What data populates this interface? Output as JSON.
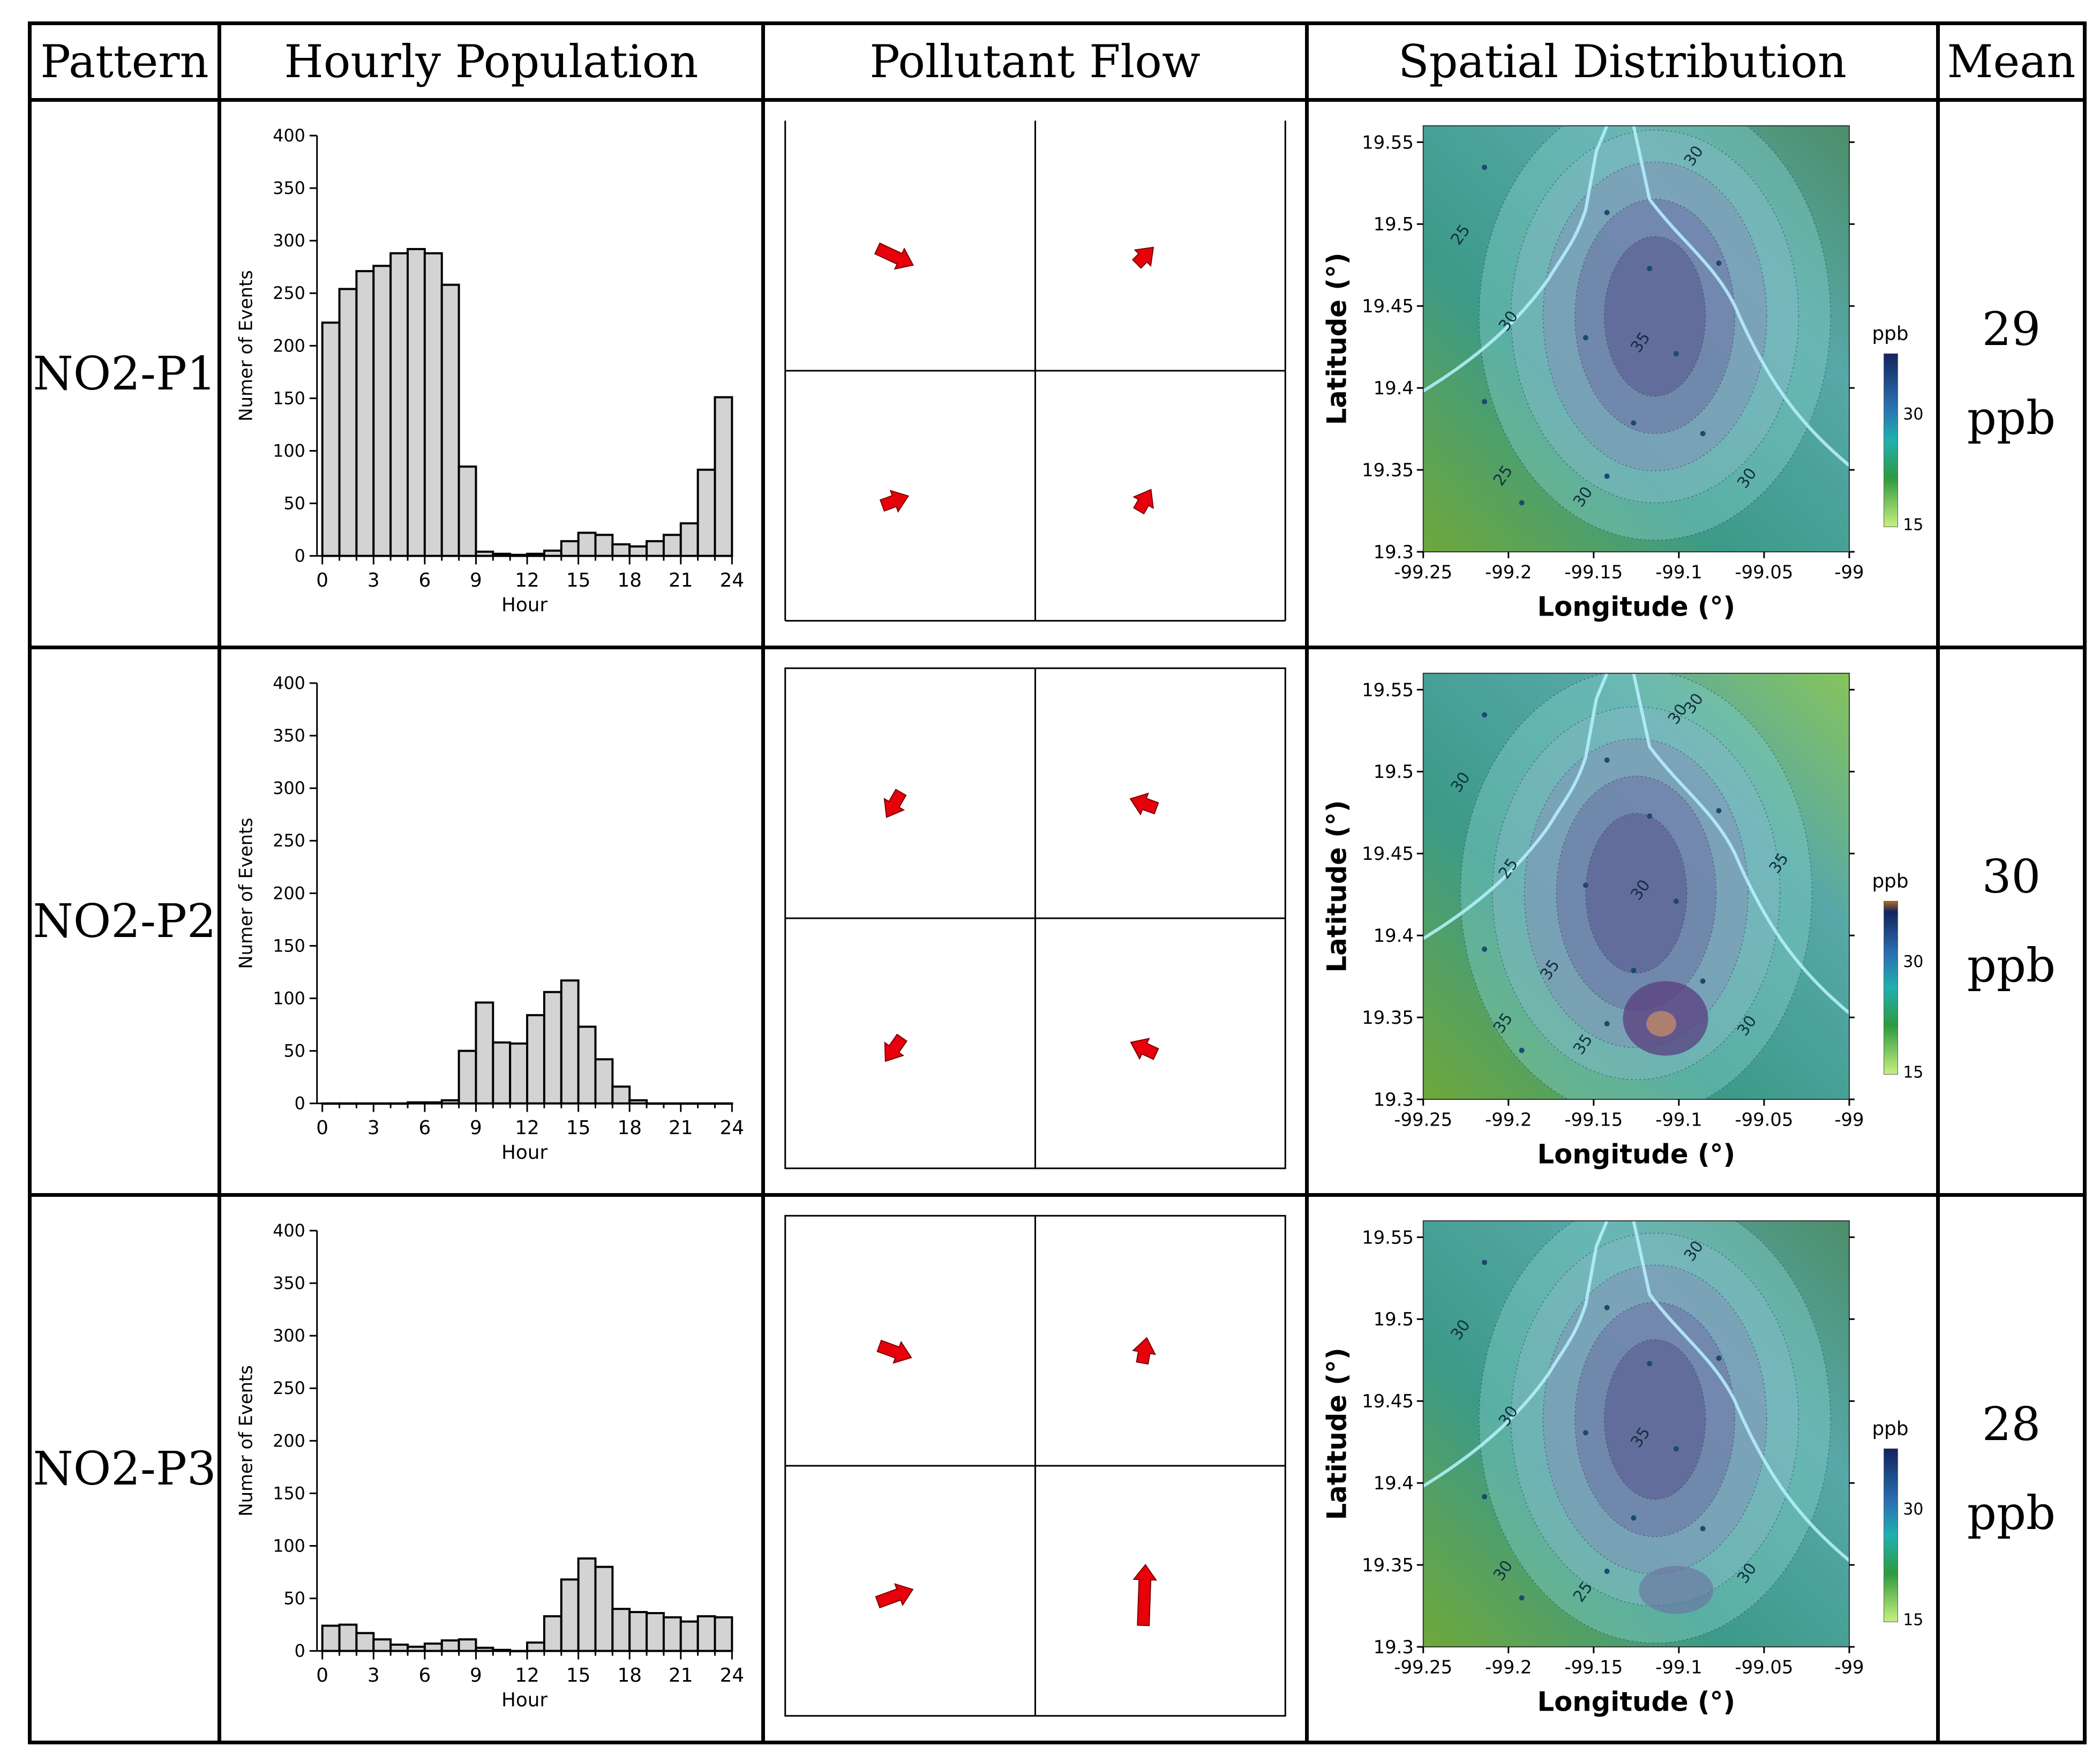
{
  "headers": {
    "pattern": "Pattern",
    "hourly": "Hourly Population",
    "flow": "Pollutant Flow",
    "spatial": "Spatial Distribution",
    "mean": "Mean"
  },
  "histogram_axes": {
    "ylabel": "Numer of Events",
    "xlabel": "Hour",
    "yticks": [
      "0",
      "50",
      "100",
      "150",
      "200",
      "250",
      "300",
      "350",
      "400"
    ],
    "xticks": [
      "0",
      "3",
      "6",
      "9",
      "12",
      "15",
      "18",
      "21",
      "24"
    ]
  },
  "map_axes": {
    "ylabel": "Latitude (°)",
    "xlabel": "Longitude (°)",
    "yticks": [
      "19.3",
      "19.35",
      "19.4",
      "19.45",
      "19.5",
      "19.55"
    ],
    "xticks": [
      "-99.25",
      "-99.2",
      "-99.15",
      "-99.1",
      "-99.05",
      "-99"
    ],
    "legend_title": "ppb",
    "legend_ticks": [
      "30",
      "15"
    ]
  },
  "rows": [
    {
      "pattern": "NO2-P1",
      "mean_value": "29",
      "mean_unit": "ppb",
      "contour_labels": [
        "30",
        "25",
        "30",
        "35",
        "25",
        "30",
        "30"
      ],
      "flow_arrows_deg": [
        25,
        -45,
        -20,
        -60
      ]
    },
    {
      "pattern": "NO2-P2",
      "mean_value": "30",
      "mean_unit": "ppb",
      "contour_labels": [
        "30",
        "30",
        "25",
        "30",
        "35",
        "35",
        "30",
        "30",
        "35",
        "35"
      ],
      "flow_arrows_deg": [
        120,
        200,
        125,
        205
      ]
    },
    {
      "pattern": "NO2-P3",
      "mean_value": "28",
      "mean_unit": "ppb",
      "contour_labels": [
        "30",
        "30",
        "30",
        "35",
        "30",
        "25",
        "30"
      ],
      "flow_arrows_deg": [
        20,
        -80,
        -20,
        -88
      ]
    }
  ],
  "chart_data": [
    {
      "type": "bar",
      "title": "NO2-P1 Hourly Population",
      "xlabel": "Hour",
      "ylabel": "Numer of Events",
      "categories": [
        0,
        1,
        2,
        3,
        4,
        5,
        6,
        7,
        8,
        9,
        10,
        11,
        12,
        13,
        14,
        15,
        16,
        17,
        18,
        19,
        20,
        21,
        22,
        23
      ],
      "values": [
        222,
        254,
        271,
        276,
        288,
        292,
        288,
        258,
        85,
        4,
        2,
        1,
        2,
        5,
        14,
        22,
        20,
        11,
        9,
        14,
        20,
        31,
        82,
        151
      ],
      "xlim": [
        0,
        24
      ],
      "ylim": [
        0,
        400
      ]
    },
    {
      "type": "bar",
      "title": "NO2-P2 Hourly Population",
      "xlabel": "Hour",
      "ylabel": "Numer of Events",
      "categories": [
        0,
        1,
        2,
        3,
        4,
        5,
        6,
        7,
        8,
        9,
        10,
        11,
        12,
        13,
        14,
        15,
        16,
        17,
        18,
        19,
        20,
        21,
        22,
        23
      ],
      "values": [
        0,
        0,
        0,
        0,
        0,
        1,
        1,
        3,
        50,
        96,
        58,
        57,
        84,
        106,
        117,
        73,
        42,
        16,
        3,
        0,
        0,
        0,
        0,
        0
      ],
      "xlim": [
        0,
        24
      ],
      "ylim": [
        0,
        400
      ]
    },
    {
      "type": "bar",
      "title": "NO2-P3 Hourly Population",
      "xlabel": "Hour",
      "ylabel": "Numer of Events",
      "categories": [
        0,
        1,
        2,
        3,
        4,
        5,
        6,
        7,
        8,
        9,
        10,
        11,
        12,
        13,
        14,
        15,
        16,
        17,
        18,
        19,
        20,
        21,
        22,
        23
      ],
      "values": [
        24,
        25,
        17,
        11,
        6,
        4,
        7,
        10,
        11,
        3,
        1,
        0,
        8,
        33,
        68,
        88,
        80,
        40,
        37,
        36,
        32,
        28,
        33,
        32
      ],
      "xlim": [
        0,
        24
      ],
      "ylim": [
        0,
        400
      ]
    }
  ]
}
